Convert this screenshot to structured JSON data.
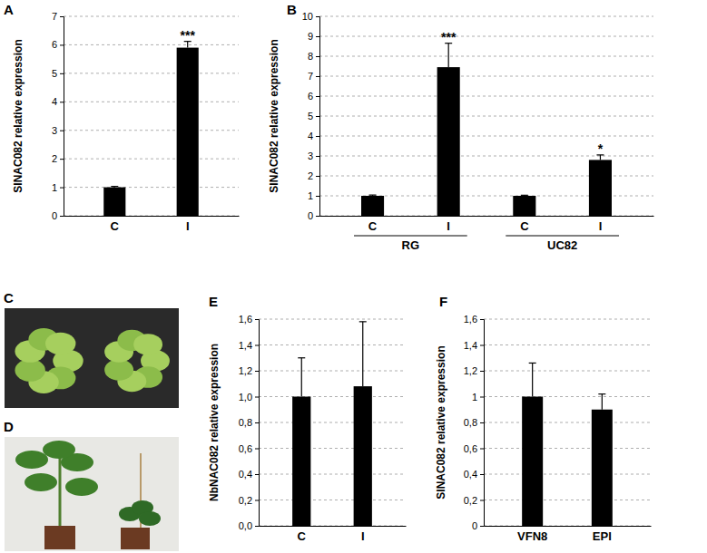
{
  "chart_data": [
    {
      "type": "bar",
      "title": "A",
      "y_label": "SlNAC082 relative expression",
      "categories": [
        "C",
        "I"
      ],
      "values": [
        1.0,
        5.9
      ],
      "errors": [
        0.03,
        0.22
      ],
      "annotations": [
        null,
        "***"
      ],
      "color": "#000000",
      "ylim": [
        0,
        7
      ],
      "yticks": [
        0,
        1,
        2,
        3,
        4,
        5,
        6,
        7
      ],
      "grid": true
    },
    {
      "type": "bar",
      "title": "B",
      "y_label": "SlNAC082 relative expression",
      "categories": [
        "C",
        "I",
        "C",
        "I"
      ],
      "group_labels": [
        "RG",
        "UC82"
      ],
      "values": [
        1.0,
        7.45,
        1.0,
        2.8
      ],
      "errors": [
        0.04,
        1.2,
        0.03,
        0.25
      ],
      "annotations": [
        null,
        "***",
        null,
        "*"
      ],
      "color": "#000000",
      "ylim": [
        0,
        10
      ],
      "yticks": [
        0,
        1,
        2,
        3,
        4,
        5,
        6,
        7,
        8,
        9,
        10
      ],
      "grid": true
    },
    {
      "type": "bar",
      "title": "E",
      "y_label": "NbNAC082 relative expression",
      "categories": [
        "C",
        "I"
      ],
      "values": [
        1.0,
        1.08
      ],
      "errors": [
        0.3,
        0.5
      ],
      "color": "#000000",
      "ylim": [
        0,
        1.6
      ],
      "yticks": [
        {
          "value": 0,
          "label": "0,0"
        },
        {
          "value": 0.2,
          "label": "0,2"
        },
        {
          "value": 0.4,
          "label": "0,4"
        },
        {
          "value": 0.6,
          "label": "0,6"
        },
        {
          "value": 0.8,
          "label": "0,8"
        },
        {
          "value": 1.0,
          "label": "1,0"
        },
        {
          "value": 1.2,
          "label": "1,2"
        },
        {
          "value": 1.4,
          "label": "1,4"
        },
        {
          "value": 1.6,
          "label": "1,6"
        }
      ],
      "grid": true
    },
    {
      "type": "bar",
      "title": "F",
      "y_label": "SlNAC082 relative expression",
      "categories": [
        "VFN8",
        "EPI"
      ],
      "values": [
        1.0,
        0.9
      ],
      "errors": [
        0.26,
        0.12
      ],
      "color": "#000000",
      "ylim": [
        0,
        1.6
      ],
      "yticks": [
        0,
        {
          "value": 0.2,
          "label": "0,2"
        },
        {
          "value": 0.4,
          "label": "0,4"
        },
        {
          "value": 0.6,
          "label": "0,6"
        },
        {
          "value": 0.8,
          "label": "0,8"
        },
        1,
        {
          "value": 1.2,
          "label": "1,2"
        },
        {
          "value": 1.4,
          "label": "1,4"
        },
        {
          "value": 1.6,
          "label": "1,6"
        }
      ],
      "grid": true
    }
  ],
  "images": [
    {
      "label": "C"
    },
    {
      "label": "D"
    }
  ]
}
